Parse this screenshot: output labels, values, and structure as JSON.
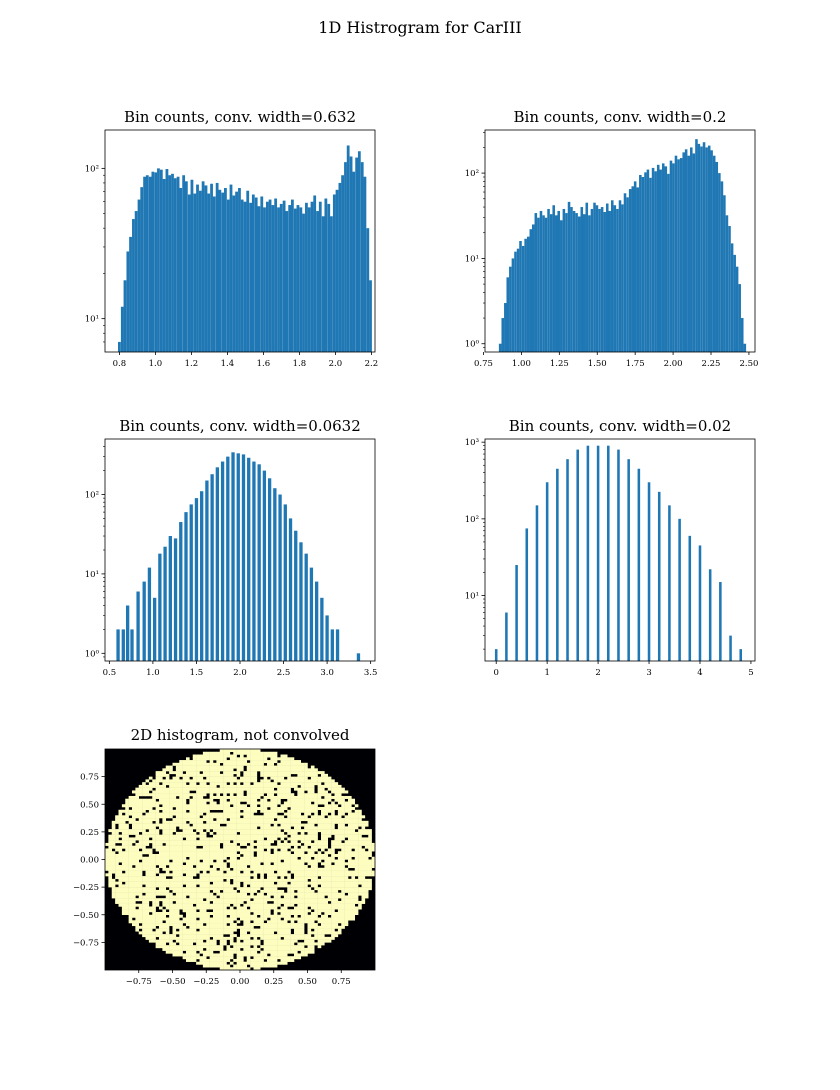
{
  "figure_title": "1D Histrogram for CarIII",
  "colors": {
    "bar": "#1f77b4",
    "heat_high": "#fcfdbf",
    "heat_low": "#000004"
  },
  "chart_data": [
    {
      "type": "bar",
      "title": "Bin counts, conv. width=0.632",
      "yscale": "log",
      "xlim": [
        0.72,
        2.22
      ],
      "ylim": [
        6,
        180
      ],
      "xticks": [
        0.8,
        1.0,
        1.2,
        1.4,
        1.6,
        1.8,
        2.0,
        2.2
      ],
      "xtick_labels": [
        "0.8",
        "1.0",
        "1.2",
        "1.4",
        "1.6",
        "1.8",
        "2.0",
        "2.2"
      ],
      "yticks": [
        10,
        100
      ],
      "ytick_labels": [
        "10¹",
        "10²"
      ],
      "bin_width": 0.0155,
      "x": [
        0.8,
        0.816,
        0.831,
        0.847,
        0.862,
        0.878,
        0.893,
        0.909,
        0.924,
        0.94,
        0.955,
        0.971,
        0.986,
        1.002,
        1.017,
        1.033,
        1.048,
        1.064,
        1.079,
        1.095,
        1.11,
        1.126,
        1.141,
        1.157,
        1.172,
        1.188,
        1.203,
        1.219,
        1.234,
        1.25,
        1.265,
        1.281,
        1.296,
        1.312,
        1.327,
        1.343,
        1.358,
        1.374,
        1.389,
        1.405,
        1.42,
        1.436,
        1.451,
        1.467,
        1.482,
        1.498,
        1.513,
        1.529,
        1.544,
        1.56,
        1.575,
        1.591,
        1.606,
        1.622,
        1.637,
        1.653,
        1.668,
        1.684,
        1.699,
        1.715,
        1.73,
        1.746,
        1.761,
        1.777,
        1.792,
        1.808,
        1.823,
        1.839,
        1.854,
        1.87,
        1.885,
        1.901,
        1.916,
        1.932,
        1.947,
        1.963,
        1.978,
        1.994,
        2.009,
        2.025,
        2.04,
        2.056,
        2.071,
        2.087,
        2.102,
        2.118,
        2.133,
        2.149,
        2.164,
        2.18,
        2.195
      ],
      "values": [
        7,
        12,
        18,
        28,
        35,
        46,
        52,
        62,
        75,
        88,
        90,
        88,
        95,
        94,
        100,
        98,
        85,
        99,
        90,
        92,
        86,
        88,
        74,
        90,
        82,
        67,
        84,
        68,
        78,
        71,
        82,
        77,
        68,
        79,
        65,
        80,
        72,
        69,
        74,
        62,
        78,
        66,
        70,
        74,
        62,
        60,
        71,
        59,
        67,
        64,
        56,
        65,
        55,
        60,
        62,
        57,
        63,
        55,
        58,
        61,
        52,
        57,
        62,
        54,
        57,
        55,
        50,
        59,
        55,
        60,
        66,
        52,
        60,
        48,
        63,
        58,
        48,
        67,
        72,
        80,
        90,
        110,
        142,
        120,
        95,
        118,
        130,
        110,
        88,
        40,
        18
      ]
    },
    {
      "type": "bar",
      "title": "Bin counts, conv. width=0.2",
      "yscale": "log",
      "xlim": [
        0.76,
        2.54
      ],
      "ylim": [
        0.8,
        320
      ],
      "xticks": [
        0.75,
        1.0,
        1.25,
        1.5,
        1.75,
        2.0,
        2.25,
        2.5
      ],
      "xtick_labels": [
        "0.75",
        "1.00",
        "1.25",
        "1.50",
        "1.75",
        "2.00",
        "2.25",
        "2.50"
      ],
      "yticks": [
        1,
        10,
        100
      ],
      "ytick_labels": [
        "10⁰",
        "10¹",
        "10²"
      ],
      "bin_width": 0.0168,
      "x": [
        0.86,
        0.877,
        0.894,
        0.91,
        0.927,
        0.944,
        0.961,
        0.978,
        0.994,
        1.011,
        1.028,
        1.045,
        1.062,
        1.078,
        1.095,
        1.112,
        1.129,
        1.146,
        1.162,
        1.179,
        1.196,
        1.213,
        1.23,
        1.246,
        1.263,
        1.28,
        1.297,
        1.314,
        1.33,
        1.347,
        1.364,
        1.381,
        1.398,
        1.414,
        1.431,
        1.448,
        1.465,
        1.482,
        1.498,
        1.515,
        1.532,
        1.549,
        1.566,
        1.582,
        1.599,
        1.616,
        1.633,
        1.65,
        1.666,
        1.683,
        1.7,
        1.717,
        1.734,
        1.75,
        1.767,
        1.784,
        1.801,
        1.818,
        1.834,
        1.851,
        1.868,
        1.885,
        1.902,
        1.918,
        1.935,
        1.952,
        1.969,
        1.986,
        2.002,
        2.019,
        2.036,
        2.053,
        2.07,
        2.086,
        2.103,
        2.12,
        2.137,
        2.154,
        2.17,
        2.187,
        2.204,
        2.221,
        2.238,
        2.254,
        2.271,
        2.288,
        2.305,
        2.322,
        2.338,
        2.355,
        2.372,
        2.389,
        2.406,
        2.422,
        2.439,
        2.456,
        2.473
      ],
      "values": [
        1,
        2,
        3,
        6,
        8,
        10,
        12,
        13,
        16,
        14,
        17,
        18,
        22,
        25,
        34,
        30,
        36,
        32,
        30,
        38,
        33,
        42,
        32,
        36,
        28,
        38,
        34,
        46,
        40,
        36,
        34,
        31,
        40,
        33,
        45,
        32,
        38,
        45,
        42,
        38,
        40,
        35,
        44,
        36,
        48,
        42,
        38,
        48,
        43,
        58,
        52,
        65,
        70,
        80,
        68,
        95,
        90,
        102,
        110,
        88,
        115,
        105,
        125,
        110,
        130,
        120,
        98,
        140,
        130,
        160,
        145,
        150,
        175,
        190,
        160,
        200,
        170,
        250,
        220,
        205,
        230,
        200,
        210,
        185,
        160,
        135,
        100,
        80,
        55,
        32,
        24,
        15,
        11,
        8,
        5,
        2,
        1
      ]
    },
    {
      "type": "bar",
      "title": "Bin counts, conv. width=0.0632",
      "yscale": "log",
      "xlim": [
        0.45,
        3.55
      ],
      "ylim": [
        0.8,
        500
      ],
      "xticks": [
        0.5,
        1.0,
        1.5,
        2.0,
        2.5,
        3.0,
        3.5
      ],
      "xtick_labels": [
        "0.5",
        "1.0",
        "1.5",
        "2.0",
        "2.5",
        "3.0",
        "3.5"
      ],
      "yticks": [
        1,
        10,
        100
      ],
      "ytick_labels": [
        "10⁰",
        "10¹",
        "10²"
      ],
      "bin_width": 0.038,
      "x": [
        0.6,
        0.66,
        0.71,
        0.76,
        0.83,
        0.9,
        0.96,
        1.02,
        1.08,
        1.14,
        1.2,
        1.26,
        1.32,
        1.38,
        1.44,
        1.5,
        1.56,
        1.62,
        1.68,
        1.74,
        1.8,
        1.86,
        1.92,
        1.98,
        2.04,
        2.1,
        2.16,
        2.22,
        2.28,
        2.34,
        2.4,
        2.46,
        2.52,
        2.58,
        2.64,
        2.7,
        2.76,
        2.82,
        2.88,
        2.94,
        3.0,
        3.06,
        3.12,
        3.36
      ],
      "values": [
        2,
        2,
        4,
        2,
        6,
        8,
        12,
        5,
        18,
        22,
        30,
        28,
        45,
        60,
        75,
        90,
        110,
        150,
        180,
        220,
        260,
        300,
        340,
        330,
        320,
        290,
        260,
        240,
        200,
        160,
        120,
        100,
        75,
        50,
        35,
        25,
        18,
        12,
        8,
        5,
        3,
        2,
        2,
        1
      ]
    },
    {
      "type": "bar",
      "title": "Bin counts, conv. width=0.02",
      "yscale": "log",
      "xlim": [
        -0.22,
        5.08
      ],
      "ylim": [
        1.4,
        1100
      ],
      "xticks": [
        0,
        1,
        2,
        3,
        4,
        5
      ],
      "xtick_labels": [
        "0",
        "1",
        "2",
        "3",
        "4",
        "5"
      ],
      "yticks": [
        10,
        100,
        1000
      ],
      "ytick_labels": [
        "10¹",
        "10²",
        "10³"
      ],
      "bin_width": 0.05,
      "x": [
        0.0,
        0.2,
        0.4,
        0.6,
        0.8,
        1.0,
        1.2,
        1.4,
        1.6,
        1.8,
        2.0,
        2.2,
        2.4,
        2.6,
        2.8,
        3.0,
        3.2,
        3.4,
        3.6,
        3.8,
        4.0,
        4.2,
        4.4,
        4.6,
        4.8
      ],
      "values": [
        2,
        6,
        25,
        75,
        150,
        300,
        450,
        600,
        800,
        900,
        900,
        900,
        800,
        600,
        450,
        300,
        225,
        150,
        100,
        60,
        45,
        22,
        15,
        3,
        2
      ]
    },
    {
      "type": "heatmap",
      "title": "2D histogram, not convolved",
      "xlim": [
        -1.0,
        1.0
      ],
      "ylim": [
        -1.0,
        1.0
      ],
      "xticks": [
        -0.75,
        -0.5,
        -0.25,
        0.0,
        0.25,
        0.5,
        0.75
      ],
      "xtick_labels": [
        "−0.75",
        "−0.50",
        "−0.25",
        "0.00",
        "0.25",
        "0.50",
        "0.75"
      ],
      "yticks": [
        0.75,
        0.5,
        0.25,
        0.0,
        -0.25,
        -0.5,
        -0.75
      ],
      "ytick_labels": [
        "0.75",
        "0.50",
        "0.25",
        "0.00",
        "−0.25",
        "−0.50",
        "−0.75"
      ],
      "grid_size": 80,
      "disk_radius": 1.0,
      "empty_fraction": 0.12
    }
  ]
}
